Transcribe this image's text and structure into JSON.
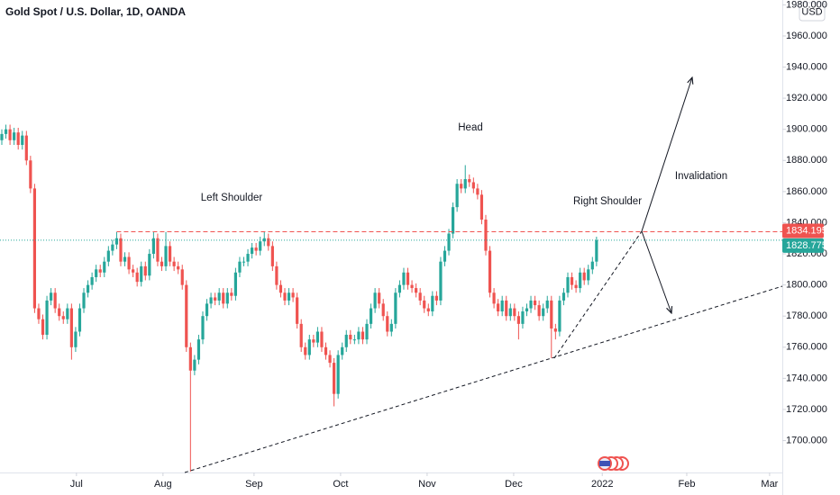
{
  "chart_data": {
    "type": "candlestick",
    "title": "Gold Spot / U.S. Dollar, 1D, OANDA",
    "currency": "USD",
    "up_color": "#26a69a",
    "down_color": "#ef5350",
    "open": [
      1893,
      1897,
      1900,
      1893,
      1898,
      1890,
      1896,
      1880,
      1862,
      1785,
      1778,
      1768,
      1790,
      1795,
      1785,
      1780,
      1778,
      1785,
      1760,
      1770,
      1785,
      1795,
      1800,
      1805,
      1810,
      1808,
      1815,
      1822,
      1826,
      1830,
      1815,
      1818,
      1810,
      1808,
      1802,
      1812,
      1806,
      1820,
      1830,
      1815,
      1812,
      1825,
      1815,
      1812,
      1810,
      1800,
      1760,
      1745,
      1752,
      1765,
      1780,
      1788,
      1792,
      1790,
      1795,
      1788,
      1795,
      1793,
      1808,
      1815,
      1815,
      1820,
      1824,
      1822,
      1828,
      1830,
      1825,
      1812,
      1800,
      1795,
      1790,
      1795,
      1792,
      1775,
      1760,
      1755,
      1765,
      1763,
      1770,
      1760,
      1755,
      1750,
      1730,
      1755,
      1760,
      1768,
      1765,
      1765,
      1770,
      1765,
      1775,
      1785,
      1795,
      1788,
      1780,
      1770,
      1775,
      1795,
      1800,
      1808,
      1800,
      1798,
      1795,
      1790,
      1785,
      1783,
      1793,
      1790,
      1815,
      1822,
      1833,
      1850,
      1865,
      1862,
      1868,
      1866,
      1862,
      1858,
      1842,
      1822,
      1795,
      1788,
      1783,
      1790,
      1780,
      1785,
      1780,
      1775,
      1783,
      1785,
      1790,
      1787,
      1780,
      1785,
      1790,
      1772,
      1770,
      1790,
      1795,
      1805,
      1800,
      1798,
      1808,
      1803,
      1810,
      1815
    ],
    "high": [
      1900,
      1903,
      1903,
      1901,
      1901,
      1899,
      1899,
      1883,
      1865,
      1788,
      1781,
      1793,
      1798,
      1798,
      1788,
      1783,
      1788,
      1788,
      1773,
      1788,
      1798,
      1803,
      1808,
      1813,
      1813,
      1818,
      1825,
      1829,
      1834,
      1833,
      1821,
      1821,
      1813,
      1811,
      1815,
      1815,
      1823,
      1834,
      1833,
      1818,
      1834,
      1828,
      1818,
      1815,
      1813,
      1803,
      1763,
      1755,
      1768,
      1783,
      1791,
      1795,
      1795,
      1798,
      1798,
      1798,
      1798,
      1811,
      1818,
      1818,
      1823,
      1827,
      1827,
      1831,
      1834,
      1833,
      1828,
      1815,
      1803,
      1798,
      1798,
      1798,
      1795,
      1778,
      1763,
      1768,
      1768,
      1773,
      1773,
      1763,
      1758,
      1753,
      1758,
      1763,
      1771,
      1771,
      1768,
      1773,
      1773,
      1778,
      1788,
      1798,
      1798,
      1791,
      1783,
      1778,
      1798,
      1803,
      1811,
      1811,
      1803,
      1801,
      1798,
      1793,
      1788,
      1796,
      1796,
      1818,
      1825,
      1836,
      1853,
      1868,
      1868,
      1877,
      1871,
      1869,
      1865,
      1861,
      1845,
      1825,
      1798,
      1791,
      1793,
      1793,
      1788,
      1788,
      1783,
      1786,
      1788,
      1793,
      1793,
      1790,
      1788,
      1793,
      1793,
      1775,
      1793,
      1798,
      1808,
      1808,
      1803,
      1811,
      1811,
      1813,
      1818,
      1831
    ],
    "low": [
      1890,
      1894,
      1890,
      1890,
      1887,
      1887,
      1877,
      1859,
      1782,
      1775,
      1765,
      1765,
      1787,
      1782,
      1777,
      1775,
      1775,
      1752,
      1757,
      1767,
      1782,
      1792,
      1797,
      1802,
      1805,
      1805,
      1812,
      1819,
      1823,
      1812,
      1812,
      1807,
      1805,
      1799,
      1799,
      1803,
      1803,
      1817,
      1812,
      1809,
      1809,
      1812,
      1809,
      1807,
      1797,
      1757,
      1680,
      1742,
      1749,
      1762,
      1777,
      1785,
      1787,
      1787,
      1785,
      1785,
      1790,
      1790,
      1805,
      1812,
      1812,
      1817,
      1819,
      1819,
      1825,
      1822,
      1809,
      1797,
      1792,
      1787,
      1787,
      1789,
      1772,
      1757,
      1752,
      1752,
      1760,
      1760,
      1757,
      1752,
      1747,
      1722,
      1727,
      1752,
      1757,
      1762,
      1762,
      1762,
      1762,
      1762,
      1772,
      1782,
      1785,
      1777,
      1767,
      1767,
      1772,
      1792,
      1797,
      1797,
      1795,
      1792,
      1787,
      1782,
      1780,
      1780,
      1787,
      1787,
      1812,
      1819,
      1830,
      1847,
      1859,
      1859,
      1863,
      1859,
      1855,
      1839,
      1819,
      1792,
      1785,
      1780,
      1780,
      1777,
      1777,
      1777,
      1765,
      1772,
      1780,
      1782,
      1784,
      1777,
      1777,
      1782,
      1753,
      1765,
      1767,
      1787,
      1792,
      1797,
      1795,
      1795,
      1800,
      1800,
      1807,
      1812
    ],
    "close": [
      1897,
      1900,
      1893,
      1898,
      1890,
      1896,
      1880,
      1862,
      1785,
      1778,
      1768,
      1790,
      1795,
      1785,
      1780,
      1778,
      1785,
      1760,
      1770,
      1785,
      1795,
      1800,
      1805,
      1810,
      1808,
      1815,
      1822,
      1826,
      1830,
      1815,
      1818,
      1810,
      1808,
      1802,
      1812,
      1806,
      1820,
      1830,
      1815,
      1812,
      1825,
      1815,
      1812,
      1810,
      1800,
      1760,
      1745,
      1752,
      1765,
      1780,
      1788,
      1792,
      1790,
      1795,
      1788,
      1795,
      1793,
      1808,
      1815,
      1815,
      1820,
      1824,
      1822,
      1828,
      1830,
      1825,
      1812,
      1800,
      1795,
      1790,
      1795,
      1792,
      1775,
      1760,
      1755,
      1765,
      1763,
      1770,
      1760,
      1755,
      1750,
      1730,
      1755,
      1760,
      1768,
      1765,
      1765,
      1770,
      1765,
      1775,
      1785,
      1795,
      1788,
      1780,
      1770,
      1775,
      1795,
      1800,
      1808,
      1800,
      1798,
      1795,
      1790,
      1785,
      1783,
      1793,
      1790,
      1815,
      1822,
      1833,
      1850,
      1865,
      1862,
      1868,
      1866,
      1862,
      1858,
      1842,
      1822,
      1795,
      1788,
      1783,
      1790,
      1780,
      1785,
      1780,
      1775,
      1783,
      1785,
      1790,
      1787,
      1780,
      1785,
      1790,
      1772,
      1770,
      1790,
      1795,
      1805,
      1800,
      1798,
      1808,
      1803,
      1810,
      1815,
      1828.775
    ],
    "resistance": 1834.195,
    "resistance_color": "#ef5350",
    "ylim": [
      1679.5,
      1983.1
    ],
    "yticks": [
      {
        "value": 1700,
        "label": "1700.000"
      },
      {
        "value": 1720,
        "label": "1720.000"
      },
      {
        "value": 1740,
        "label": "1740.000"
      },
      {
        "value": 1760,
        "label": "1760.000"
      },
      {
        "value": 1780,
        "label": "1780.000"
      },
      {
        "value": 1800,
        "label": "1800.000"
      },
      {
        "value": 1820,
        "label": "1820.000"
      },
      {
        "value": 1840,
        "label": "1840.000"
      },
      {
        "value": 1860,
        "label": "1860.000"
      },
      {
        "value": 1880,
        "label": "1880.000"
      },
      {
        "value": 1900,
        "label": "1900.000"
      },
      {
        "value": 1920,
        "label": "1920.000"
      },
      {
        "value": 1940,
        "label": "1940.000"
      },
      {
        "value": 1960,
        "label": "1960.000"
      },
      {
        "value": 1980,
        "label": "1980.000"
      }
    ],
    "xlim": [
      -0.44,
      190.3
    ],
    "xticks": [
      {
        "value": 18.2,
        "label": "Jul"
      },
      {
        "value": 39.3,
        "label": "Aug"
      },
      {
        "value": 61.5,
        "label": "Sep"
      },
      {
        "value": 82.6,
        "label": "Oct"
      },
      {
        "value": 103.7,
        "label": "Nov"
      },
      {
        "value": 124.8,
        "label": "Dec"
      },
      {
        "value": 146.4,
        "label": "2022"
      },
      {
        "value": 167.0,
        "label": "Feb"
      },
      {
        "value": 187.2,
        "label": "Mar"
      }
    ],
    "annotations": [
      "Left Shoulder",
      "Head",
      "Right Shoulder",
      "Invalidation"
    ]
  }
}
